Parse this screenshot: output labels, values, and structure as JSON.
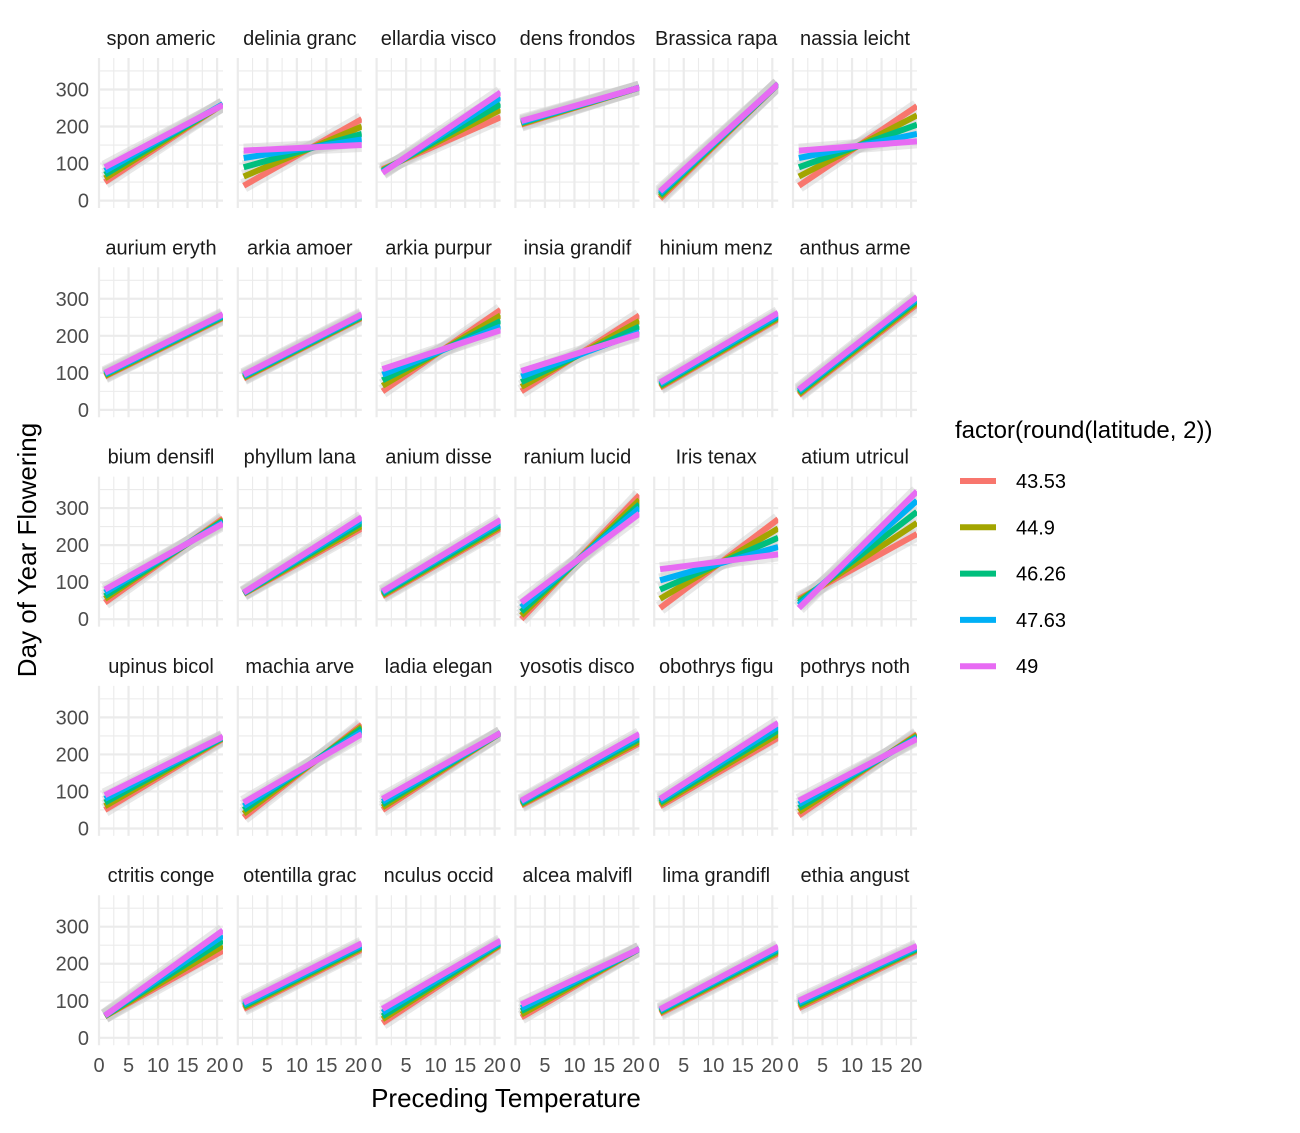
{
  "chart_data": {
    "type": "line",
    "xlabel": "Preceding Temperature",
    "ylabel": "Day of Year Flowering",
    "xlim": [
      0,
      21
    ],
    "ylim": [
      -20,
      385
    ],
    "x_ticks": [
      0,
      5,
      10,
      15,
      20
    ],
    "y_ticks": [
      0,
      100,
      200,
      300
    ],
    "grid": true,
    "legend": {
      "title": "factor(round(latitude, 2))",
      "placement": "right",
      "entries": [
        {
          "label": "43.53",
          "color": "#F8766D"
        },
        {
          "label": "44.9",
          "color": "#A3A500"
        },
        {
          "label": "46.26",
          "color": "#00BF7D"
        },
        {
          "label": "47.63",
          "color": "#00B0F6"
        },
        {
          "label": "49",
          "color": "#E76BF3"
        }
      ]
    },
    "series_x": [
      1,
      21
    ],
    "panels": [
      {
        "title": "spon americ",
        "lines": [
          [
            50,
            260
          ],
          [
            60,
            260
          ],
          [
            70,
            260
          ],
          [
            80,
            260
          ],
          [
            90,
            258
          ]
        ]
      },
      {
        "title": "delinia granc",
        "lines": [
          [
            40,
            220
          ],
          [
            65,
            200
          ],
          [
            90,
            180
          ],
          [
            115,
            165
          ],
          [
            135,
            150
          ]
        ]
      },
      {
        "title": "ellardia visco",
        "lines": [
          [
            85,
            225
          ],
          [
            82,
            245
          ],
          [
            80,
            260
          ],
          [
            77,
            278
          ],
          [
            75,
            292
          ]
        ]
      },
      {
        "title": "dens frondos",
        "lines": [
          [
            205,
            305
          ],
          [
            207,
            305
          ],
          [
            210,
            305
          ],
          [
            212,
            305
          ],
          [
            215,
            305
          ]
        ]
      },
      {
        "title": "Brassica rapa",
        "lines": [
          [
            5,
            315
          ],
          [
            10,
            315
          ],
          [
            15,
            315
          ],
          [
            20,
            315
          ],
          [
            25,
            315
          ]
        ]
      },
      {
        "title": "nassia leicht",
        "lines": [
          [
            40,
            255
          ],
          [
            65,
            230
          ],
          [
            90,
            205
          ],
          [
            115,
            180
          ],
          [
            135,
            160
          ]
        ]
      },
      {
        "title": "aurium eryth",
        "lines": [
          [
            90,
            248
          ],
          [
            92,
            250
          ],
          [
            95,
            252
          ],
          [
            97,
            255
          ],
          [
            100,
            258
          ]
        ]
      },
      {
        "title": "arkia amoer",
        "lines": [
          [
            85,
            248
          ],
          [
            87,
            250
          ],
          [
            90,
            252
          ],
          [
            92,
            255
          ],
          [
            95,
            258
          ]
        ]
      },
      {
        "title": "arkia purpur",
        "lines": [
          [
            50,
            270
          ],
          [
            65,
            255
          ],
          [
            80,
            240
          ],
          [
            95,
            225
          ],
          [
            110,
            215
          ]
        ]
      },
      {
        "title": "insia grandif",
        "lines": [
          [
            50,
            255
          ],
          [
            62,
            240
          ],
          [
            75,
            225
          ],
          [
            90,
            210
          ],
          [
            105,
            205
          ]
        ]
      },
      {
        "title": "hinium menz",
        "lines": [
          [
            60,
            245
          ],
          [
            63,
            248
          ],
          [
            66,
            252
          ],
          [
            70,
            256
          ],
          [
            74,
            262
          ]
        ]
      },
      {
        "title": "anthus arme",
        "lines": [
          [
            40,
            285
          ],
          [
            43,
            290
          ],
          [
            47,
            295
          ],
          [
            51,
            300
          ],
          [
            55,
            305
          ]
        ]
      },
      {
        "title": "bium densifl",
        "lines": [
          [
            45,
            272
          ],
          [
            55,
            268
          ],
          [
            62,
            265
          ],
          [
            72,
            262
          ],
          [
            80,
            258
          ]
        ]
      },
      {
        "title": "phyllum lana",
        "lines": [
          [
            68,
            245
          ],
          [
            69,
            252
          ],
          [
            70,
            260
          ],
          [
            71,
            268
          ],
          [
            72,
            275
          ]
        ]
      },
      {
        "title": "anium disse",
        "lines": [
          [
            62,
            245
          ],
          [
            65,
            250
          ],
          [
            68,
            255
          ],
          [
            72,
            262
          ],
          [
            75,
            268
          ]
        ]
      },
      {
        "title": "ranium lucid",
        "lines": [
          [
            0,
            335
          ],
          [
            10,
            322
          ],
          [
            20,
            310
          ],
          [
            32,
            300
          ],
          [
            45,
            285
          ]
        ]
      },
      {
        "title": "Iris tenax",
        "lines": [
          [
            30,
            270
          ],
          [
            55,
            245
          ],
          [
            80,
            220
          ],
          [
            105,
            195
          ],
          [
            135,
            175
          ]
        ]
      },
      {
        "title": "atium utricul",
        "lines": [
          [
            55,
            230
          ],
          [
            50,
            260
          ],
          [
            45,
            290
          ],
          [
            38,
            320
          ],
          [
            30,
            345
          ]
        ]
      },
      {
        "title": "upinus bicol",
        "lines": [
          [
            50,
            242
          ],
          [
            60,
            244
          ],
          [
            70,
            245
          ],
          [
            80,
            247
          ],
          [
            90,
            248
          ]
        ]
      },
      {
        "title": "machia arve",
        "lines": [
          [
            30,
            280
          ],
          [
            40,
            275
          ],
          [
            50,
            270
          ],
          [
            60,
            262
          ],
          [
            70,
            255
          ]
        ]
      },
      {
        "title": "ladia elegan",
        "lines": [
          [
            50,
            258
          ],
          [
            57,
            258
          ],
          [
            65,
            258
          ],
          [
            72,
            258
          ],
          [
            80,
            258
          ]
        ]
      },
      {
        "title": "yosotis disco",
        "lines": [
          [
            62,
            230
          ],
          [
            65,
            235
          ],
          [
            68,
            242
          ],
          [
            72,
            248
          ],
          [
            75,
            255
          ]
        ]
      },
      {
        "title": "obothrys figu",
        "lines": [
          [
            60,
            245
          ],
          [
            65,
            255
          ],
          [
            70,
            265
          ],
          [
            75,
            275
          ],
          [
            80,
            285
          ]
        ]
      },
      {
        "title": "pothrys noth",
        "lines": [
          [
            35,
            255
          ],
          [
            45,
            252
          ],
          [
            55,
            248
          ],
          [
            65,
            245
          ],
          [
            75,
            242
          ]
        ]
      },
      {
        "title": "ctritis conge",
        "lines": [
          [
            58,
            235
          ],
          [
            58,
            248
          ],
          [
            59,
            262
          ],
          [
            60,
            276
          ],
          [
            60,
            290
          ]
        ]
      },
      {
        "title": "otentilla grac",
        "lines": [
          [
            78,
            238
          ],
          [
            82,
            242
          ],
          [
            86,
            246
          ],
          [
            90,
            250
          ],
          [
            95,
            255
          ]
        ]
      },
      {
        "title": "nculus occid",
        "lines": [
          [
            40,
            250
          ],
          [
            50,
            252
          ],
          [
            58,
            255
          ],
          [
            68,
            258
          ],
          [
            78,
            262
          ]
        ]
      },
      {
        "title": "alcea malvifl",
        "lines": [
          [
            55,
            240
          ],
          [
            63,
            240
          ],
          [
            72,
            240
          ],
          [
            80,
            240
          ],
          [
            90,
            240
          ]
        ]
      },
      {
        "title": "lima grandifl",
        "lines": [
          [
            65,
            228
          ],
          [
            68,
            232
          ],
          [
            71,
            236
          ],
          [
            74,
            241
          ],
          [
            77,
            246
          ]
        ]
      },
      {
        "title": "ethia angust",
        "lines": [
          [
            80,
            235
          ],
          [
            85,
            238
          ],
          [
            90,
            240
          ],
          [
            95,
            244
          ],
          [
            100,
            248
          ]
        ]
      }
    ]
  }
}
